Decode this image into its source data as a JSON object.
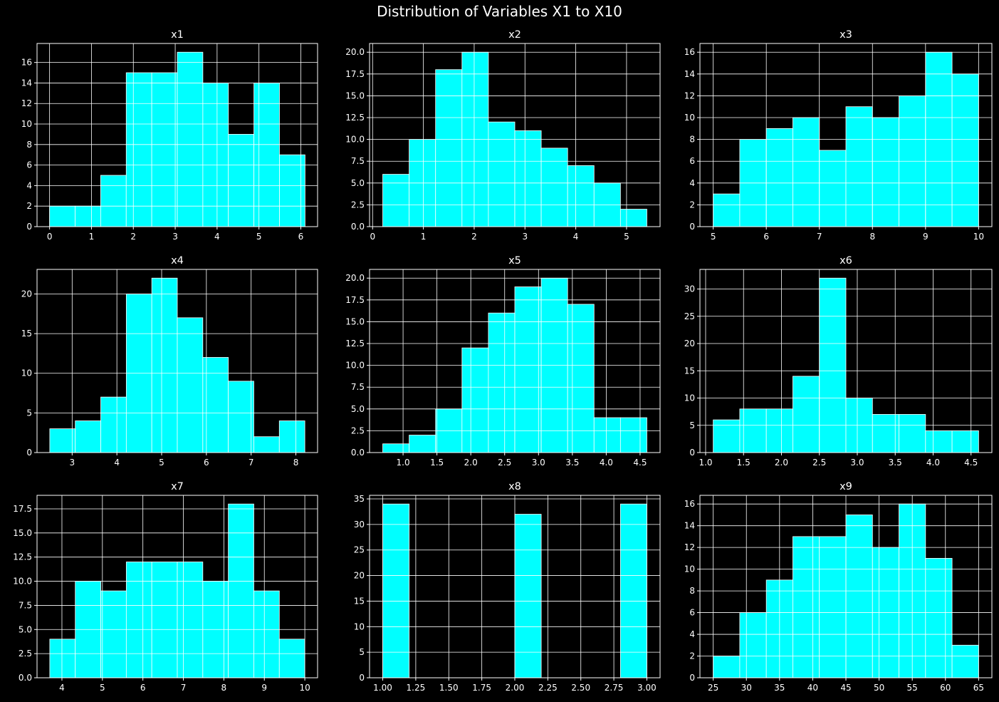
{
  "figure": {
    "title": "Distribution of Variables X1 to X10"
  },
  "colors": {
    "background": "#000000",
    "bar_fill": "#00ffff",
    "bar_edge": "#ffffff",
    "grid": "#ffffff",
    "text": "#ffffff"
  },
  "chart_data": [
    {
      "type": "bar",
      "title": "x1",
      "grid": true,
      "edges": [
        0,
        0.61,
        1.22,
        1.83,
        2.44,
        3.05,
        3.66,
        4.27,
        4.88,
        5.49,
        6.1
      ],
      "counts": [
        2,
        2,
        5,
        15,
        15,
        17,
        14,
        9,
        14,
        7
      ],
      "xlim": [
        -0.3,
        6.4
      ],
      "ylim": [
        0,
        17.85
      ],
      "xticks": [
        0,
        1,
        2,
        3,
        4,
        5,
        6
      ],
      "xticklabels": [
        "0",
        "1",
        "2",
        "3",
        "4",
        "5",
        "6"
      ],
      "yticks": [
        0,
        2,
        4,
        6,
        8,
        10,
        12,
        14,
        16
      ],
      "yticklabels": [
        "0",
        "2",
        "4",
        "6",
        "8",
        "10",
        "12",
        "14",
        "16"
      ]
    },
    {
      "type": "bar",
      "title": "x2",
      "grid": true,
      "edges": [
        0.2,
        0.72,
        1.24,
        1.76,
        2.28,
        2.8,
        3.32,
        3.84,
        4.36,
        4.88,
        5.4
      ],
      "counts": [
        6,
        10,
        18,
        20,
        12,
        11,
        9,
        7,
        5,
        2
      ],
      "xlim": [
        -0.06,
        5.66
      ],
      "ylim": [
        0,
        21
      ],
      "xticks": [
        0,
        1,
        2,
        3,
        4,
        5
      ],
      "xticklabels": [
        "0",
        "1",
        "2",
        "3",
        "4",
        "5"
      ],
      "yticks": [
        0,
        2.5,
        5,
        7.5,
        10,
        12.5,
        15,
        17.5,
        20
      ],
      "yticklabels": [
        "0.0",
        "2.5",
        "5.0",
        "7.5",
        "10.0",
        "12.5",
        "15.0",
        "17.5",
        "20.0"
      ]
    },
    {
      "type": "bar",
      "title": "x3",
      "grid": true,
      "edges": [
        5,
        5.5,
        6,
        6.5,
        7,
        7.5,
        8,
        8.5,
        9,
        9.5,
        10
      ],
      "counts": [
        3,
        8,
        9,
        10,
        7,
        11,
        10,
        12,
        16,
        14
      ],
      "xlim": [
        4.75,
        10.25
      ],
      "ylim": [
        0,
        16.8
      ],
      "xticks": [
        5,
        6,
        7,
        8,
        9,
        10
      ],
      "xticklabels": [
        "5",
        "6",
        "7",
        "8",
        "9",
        "10"
      ],
      "yticks": [
        0,
        2,
        4,
        6,
        8,
        10,
        12,
        14,
        16
      ],
      "yticklabels": [
        "0",
        "2",
        "4",
        "6",
        "8",
        "10",
        "12",
        "14",
        "16"
      ]
    },
    {
      "type": "bar",
      "title": "x4",
      "grid": true,
      "edges": [
        2.5,
        3.07,
        3.64,
        4.21,
        4.78,
        5.35,
        5.92,
        6.49,
        7.06,
        7.63,
        8.2
      ],
      "counts": [
        3,
        4,
        7,
        20,
        22,
        17,
        12,
        9,
        2,
        4
      ],
      "xlim": [
        2.215,
        8.485
      ],
      "ylim": [
        0,
        23.1
      ],
      "xticks": [
        3,
        4,
        5,
        6,
        7,
        8
      ],
      "xticklabels": [
        "3",
        "4",
        "5",
        "6",
        "7",
        "8"
      ],
      "yticks": [
        0,
        5,
        10,
        15,
        20
      ],
      "yticklabels": [
        "0",
        "5",
        "10",
        "15",
        "20"
      ]
    },
    {
      "type": "bar",
      "title": "x5",
      "grid": true,
      "edges": [
        0.7,
        1.09,
        1.48,
        1.87,
        2.26,
        2.65,
        3.04,
        3.43,
        3.82,
        4.21,
        4.6
      ],
      "counts": [
        1,
        2,
        5,
        12,
        16,
        19,
        20,
        17,
        4,
        4
      ],
      "xlim": [
        0.505,
        4.795
      ],
      "ylim": [
        0,
        21
      ],
      "xticks": [
        1,
        1.5,
        2,
        2.5,
        3,
        3.5,
        4,
        4.5
      ],
      "xticklabels": [
        "1.0",
        "1.5",
        "2.0",
        "2.5",
        "3.0",
        "3.5",
        "4.0",
        "4.5"
      ],
      "yticks": [
        0,
        2.5,
        5,
        7.5,
        10,
        12.5,
        15,
        17.5,
        20
      ],
      "yticklabels": [
        "0.0",
        "2.5",
        "5.0",
        "7.5",
        "10.0",
        "12.5",
        "15.0",
        "17.5",
        "20.0"
      ]
    },
    {
      "type": "bar",
      "title": "x6",
      "grid": true,
      "edges": [
        1.1,
        1.45,
        1.8,
        2.15,
        2.5,
        2.85,
        3.2,
        3.55,
        3.9,
        4.25,
        4.6
      ],
      "counts": [
        6,
        8,
        8,
        14,
        32,
        10,
        7,
        7,
        4,
        4
      ],
      "xlim": [
        0.925,
        4.775
      ],
      "ylim": [
        0,
        33.6
      ],
      "xticks": [
        1,
        1.5,
        2,
        2.5,
        3,
        3.5,
        4,
        4.5
      ],
      "xticklabels": [
        "1.0",
        "1.5",
        "2.0",
        "2.5",
        "3.0",
        "3.5",
        "4.0",
        "4.5"
      ],
      "yticks": [
        0,
        5,
        10,
        15,
        20,
        25,
        30
      ],
      "yticklabels": [
        "0",
        "5",
        "10",
        "15",
        "20",
        "25",
        "30"
      ]
    },
    {
      "type": "bar",
      "title": "x7",
      "grid": true,
      "edges": [
        3.7,
        4.33,
        4.96,
        5.59,
        6.22,
        6.85,
        7.48,
        8.11,
        8.74,
        9.37,
        10
      ],
      "counts": [
        4,
        10,
        9,
        12,
        12,
        12,
        10,
        18,
        9,
        4
      ],
      "xlim": [
        3.385,
        10.315
      ],
      "ylim": [
        0,
        18.9
      ],
      "xticks": [
        4,
        5,
        6,
        7,
        8,
        9,
        10
      ],
      "xticklabels": [
        "4",
        "5",
        "6",
        "7",
        "8",
        "9",
        "10"
      ],
      "yticks": [
        0,
        2.5,
        5,
        7.5,
        10,
        12.5,
        15,
        17.5
      ],
      "yticklabels": [
        "0.0",
        "2.5",
        "5.0",
        "7.5",
        "10.0",
        "12.5",
        "15.0",
        "17.5"
      ]
    },
    {
      "type": "bar",
      "title": "x8",
      "grid": true,
      "edges": [
        1,
        1.2,
        1.4,
        1.6,
        1.8,
        2,
        2.2,
        2.4,
        2.6,
        2.8,
        3
      ],
      "counts": [
        34,
        0,
        0,
        0,
        0,
        32,
        0,
        0,
        0,
        34
      ],
      "xlim": [
        0.9,
        3.1
      ],
      "ylim": [
        0,
        35.7
      ],
      "xticks": [
        1,
        1.25,
        1.5,
        1.75,
        2,
        2.25,
        2.5,
        2.75,
        3
      ],
      "xticklabels": [
        "1.00",
        "1.25",
        "1.50",
        "1.75",
        "2.00",
        "2.25",
        "2.50",
        "2.75",
        "3.00"
      ],
      "yticks": [
        0,
        5,
        10,
        15,
        20,
        25,
        30,
        35
      ],
      "yticklabels": [
        "0",
        "5",
        "10",
        "15",
        "20",
        "25",
        "30",
        "35"
      ]
    },
    {
      "type": "bar",
      "title": "x9",
      "grid": true,
      "edges": [
        25,
        29,
        33,
        37,
        41,
        45,
        49,
        53,
        57,
        61,
        65
      ],
      "counts": [
        2,
        6,
        9,
        13,
        13,
        15,
        12,
        16,
        11,
        3
      ],
      "xlim": [
        23,
        67
      ],
      "ylim": [
        0,
        16.8
      ],
      "xticks": [
        25,
        30,
        35,
        40,
        45,
        50,
        55,
        60,
        65
      ],
      "xticklabels": [
        "25",
        "30",
        "35",
        "40",
        "45",
        "50",
        "55",
        "60",
        "65"
      ],
      "yticks": [
        0,
        2,
        4,
        6,
        8,
        10,
        12,
        14,
        16
      ],
      "yticklabels": [
        "0",
        "2",
        "4",
        "6",
        "8",
        "10",
        "12",
        "14",
        "16"
      ]
    }
  ]
}
